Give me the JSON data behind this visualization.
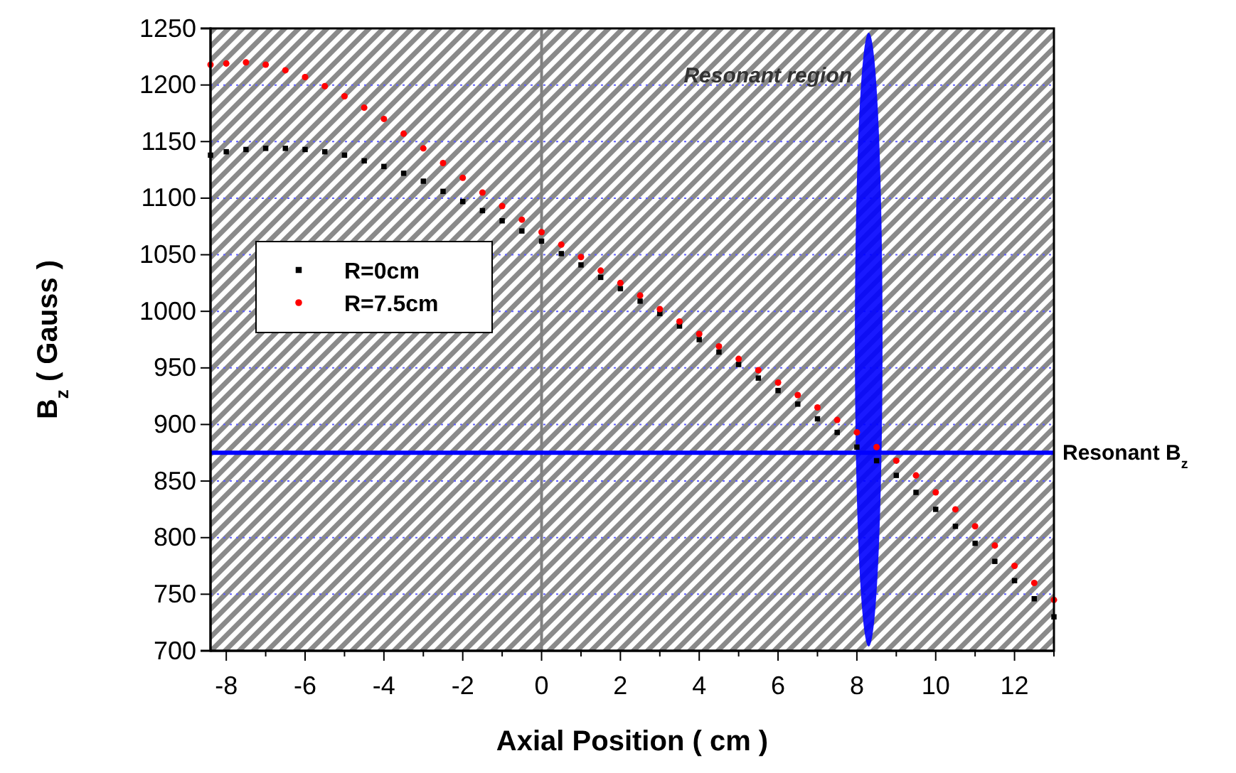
{
  "chart_data": {
    "type": "scatter",
    "xlabel": "Axial Position ( cm )",
    "ylabel": "B$_{z}$ ( Gauss )",
    "xlim": [
      -8.4,
      13
    ],
    "ylim": [
      700,
      1250
    ],
    "xticks": [
      -8,
      {
        "value": -7,
        "label": null
      },
      -6,
      {
        "value": -5,
        "label": null
      },
      -4,
      {
        "value": -3,
        "label": null
      },
      -2,
      {
        "value": -1,
        "label": null
      },
      0,
      {
        "value": 1,
        "label": null
      },
      2,
      {
        "value": 3,
        "label": null
      },
      4,
      {
        "value": 5,
        "label": null
      },
      6,
      {
        "value": 7,
        "label": null
      },
      8,
      {
        "value": 9,
        "label": null
      },
      10,
      {
        "value": 11,
        "label": null
      },
      12,
      {
        "value": 13,
        "label": null
      }
    ],
    "yticks": [
      700,
      750,
      800,
      850,
      900,
      950,
      1000,
      1050,
      1100,
      1150,
      1200,
      1250
    ],
    "grid": "y",
    "legend": "left",
    "x": [
      -8.4,
      -8,
      -7.5,
      -7,
      -6.5,
      -6,
      -5.5,
      -5,
      -4.5,
      -4,
      -3.5,
      -3,
      -2.5,
      -2,
      -1.5,
      -1,
      -0.5,
      0,
      0.5,
      1,
      1.5,
      2,
      2.5,
      3,
      3.5,
      4,
      4.5,
      5,
      5.5,
      6,
      6.5,
      7,
      7.5,
      8,
      8.5,
      9,
      9.5,
      10,
      10.5,
      11,
      11.5,
      12,
      12.5,
      13
    ],
    "series": [
      {
        "name": "R=0cm",
        "color": "#000000",
        "marker": "square",
        "values": [
          1138,
          1141,
          1143,
          1144,
          1144,
          1143,
          1141,
          1138,
          1133,
          1128,
          1122,
          1115,
          1106,
          1097,
          1089,
          1080,
          1071,
          1062,
          1051,
          1041,
          1030,
          1020,
          1009,
          998,
          987,
          975,
          964,
          953,
          941,
          930,
          918,
          905,
          893,
          880,
          868,
          855,
          840,
          825,
          810,
          795,
          779,
          762,
          746,
          730
        ]
      },
      {
        "name": "R=7.5cm",
        "color": "#ff0000",
        "marker": "circle",
        "values": [
          1218,
          1219,
          1220,
          1218,
          1213,
          1207,
          1199,
          1190,
          1180,
          1170,
          1157,
          1144,
          1131,
          1118,
          1105,
          1093,
          1081,
          1070,
          1059,
          1048,
          1036,
          1025,
          1014,
          1002,
          991,
          980,
          969,
          958,
          948,
          937,
          926,
          915,
          904,
          893,
          880,
          868,
          855,
          840,
          825,
          810,
          793,
          775,
          760,
          745
        ]
      }
    ],
    "ref_lines": [
      {
        "axis": "x",
        "value": 0,
        "color": "#808080"
      },
      {
        "axis": "y",
        "value": 875,
        "label": "Resonant B$_{z}$",
        "color": "#0000ff"
      }
    ],
    "bands": [
      {
        "axis": "x",
        "from": 7.95,
        "to": 8.65,
        "label": "Resonant region",
        "color": "#0000ff"
      }
    ]
  }
}
